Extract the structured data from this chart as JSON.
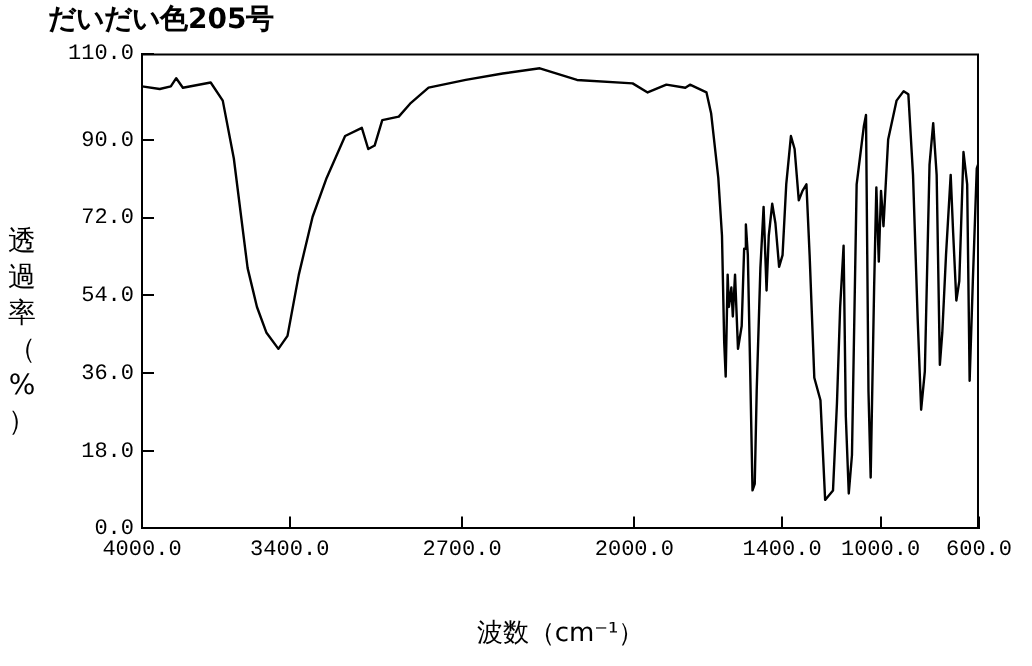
{
  "chart_data": {
    "type": "line",
    "title": "だいだい色205号",
    "xlabel": "波数（cm⁻¹）",
    "ylabel": "透過率（%）",
    "xlim": [
      4000,
      600
    ],
    "xticks": [
      {
        "value": 4000,
        "label": "4000.0"
      },
      {
        "value": 3400,
        "label": "3400.0"
      },
      {
        "value": 2700,
        "label": "2700.0"
      },
      {
        "value": 2000,
        "label": "2000.0"
      },
      {
        "value": 1400,
        "label": "1400.0"
      },
      {
        "value": 1000,
        "label": "1000.0"
      },
      {
        "value": 600,
        "label": "600.0"
      }
    ],
    "ylim": [
      0,
      110
    ],
    "yticks": [
      {
        "value": 0,
        "label": "0.0"
      },
      {
        "value": 18,
        "label": "18.0"
      },
      {
        "value": 36,
        "label": "36.0"
      },
      {
        "value": 54,
        "label": "54.0"
      },
      {
        "value": 72,
        "label": "72.0"
      },
      {
        "value": 90,
        "label": "90.0"
      },
      {
        "value": 110,
        "label": "110.0"
      }
    ],
    "grid": false,
    "legend": false,
    "marker": "none",
    "line_style": "solid",
    "series": [
      {
        "color": "#000000",
        "x": [
          4000,
          3928,
          3883,
          3861,
          3834,
          3721,
          3672,
          3627,
          3571,
          3533,
          3495,
          3446,
          3409,
          3363,
          3307,
          3250,
          3175,
          3107,
          3081,
          3055,
          3024,
          2957,
          2911,
          2836,
          2685,
          2535,
          2384,
          2233,
          2007,
          1946,
          1870,
          1793,
          1774,
          1707,
          1688,
          1659,
          1644,
          1635,
          1629,
          1621,
          1616,
          1606,
          1600,
          1591,
          1579,
          1564,
          1554,
          1547,
          1539,
          1530,
          1520,
          1511,
          1503,
          1488,
          1475,
          1463,
          1454,
          1440,
          1427,
          1412,
          1398,
          1383,
          1364,
          1349,
          1332,
          1317,
          1301,
          1288,
          1269,
          1244,
          1225,
          1193,
          1177,
          1164,
          1150,
          1141,
          1129,
          1116,
          1097,
          1068,
          1059,
          1049,
          1040,
          1026,
          1017,
          1007,
          998,
          988,
          969,
          935,
          906,
          887,
          868,
          849,
          835,
          820,
          801,
          786,
          772,
          759,
          749,
          734,
          715,
          705,
          692,
          680,
          663,
          648,
          638,
          625,
          609,
          600
        ],
        "values": [
          102.4,
          101.8,
          102.4,
          104.3,
          102.1,
          103.3,
          99.1,
          85.7,
          60.3,
          51.3,
          45.4,
          41.6,
          44.6,
          58.8,
          72.2,
          81.2,
          90.9,
          92.8,
          87.9,
          88.7,
          94.6,
          95.4,
          98.4,
          102.1,
          103.9,
          105.4,
          106.6,
          103.9,
          103.1,
          101.0,
          102.8,
          102.1,
          102.8,
          101.0,
          96.1,
          81.2,
          67.8,
          43.1,
          35.2,
          58.8,
          51.3,
          55.8,
          49.1,
          58.8,
          41.6,
          46.9,
          64.8,
          70.4,
          63.3,
          38.2,
          8.8,
          10.3,
          31.9,
          60.3,
          74.5,
          55.1,
          67.8,
          75.2,
          70.7,
          60.6,
          63.3,
          79.7,
          90.9,
          87.9,
          76.0,
          78.2,
          79.7,
          63.3,
          34.9,
          29.7,
          6.6,
          8.8,
          29.0,
          51.3,
          65.5,
          26.0,
          8.1,
          17.0,
          79.7,
          93.1,
          95.8,
          31.9,
          11.8,
          55.8,
          79.0,
          61.8,
          78.2,
          70.0,
          90.1,
          99.1,
          101.3,
          100.6,
          81.9,
          48.4,
          27.5,
          36.4,
          84.2,
          93.9,
          81.9,
          37.9,
          45.4,
          63.3,
          81.9,
          68.5,
          52.8,
          57.3,
          87.2,
          79.7,
          34.2,
          57.3,
          83.4,
          84.9
        ]
      }
    ]
  }
}
